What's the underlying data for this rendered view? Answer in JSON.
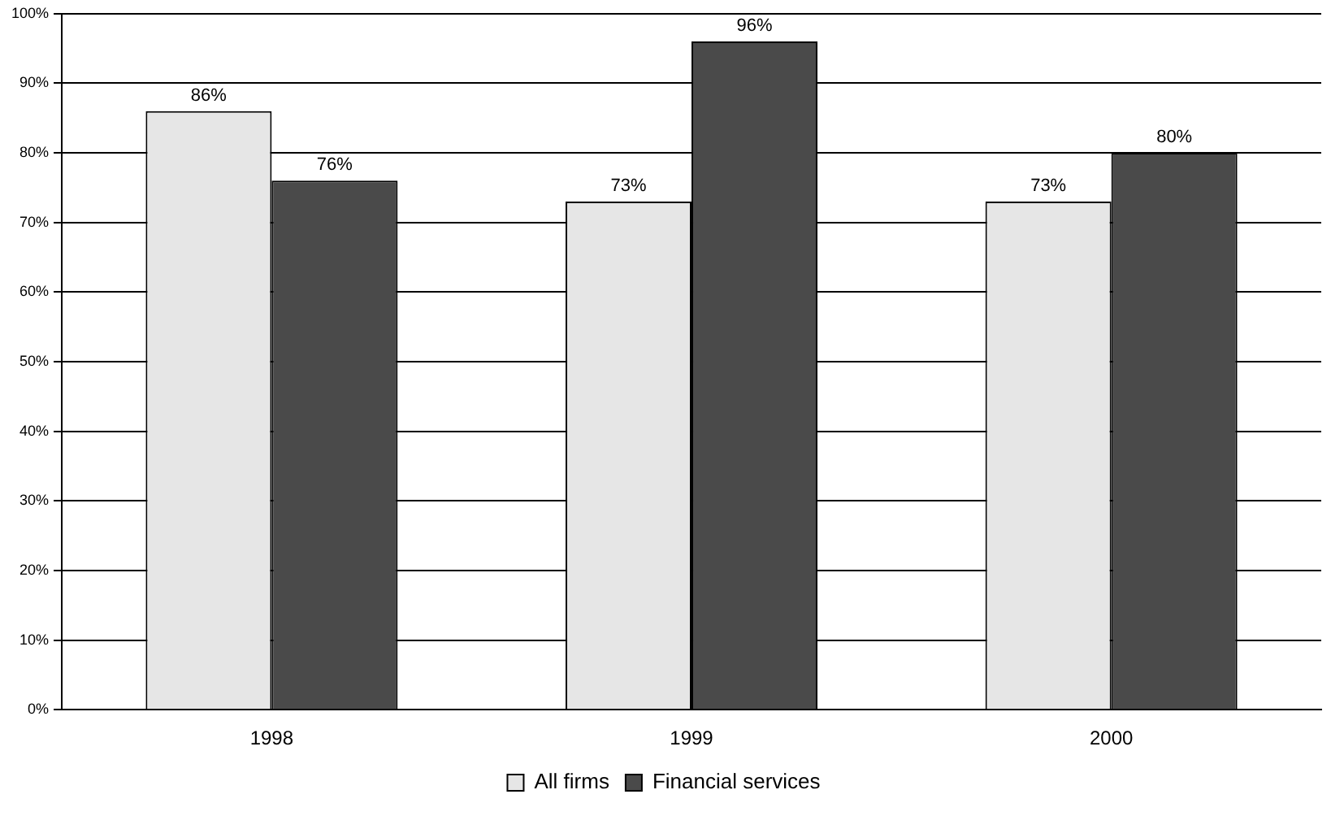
{
  "chart_data": {
    "type": "bar",
    "categories": [
      "1998",
      "1999",
      "2000"
    ],
    "series": [
      {
        "name": "All firms",
        "color": "#e6e6e6",
        "values": [
          86,
          73,
          73
        ],
        "value_labels": [
          "86%",
          "73%",
          "73%"
        ]
      },
      {
        "name": "Financial services",
        "color": "#4a4a4a",
        "values": [
          76,
          96,
          80
        ],
        "value_labels": [
          "76%",
          "96%",
          "80%"
        ]
      }
    ],
    "ylim": [
      0,
      100
    ],
    "yticks": [
      {
        "value": 0,
        "label": "0%"
      },
      {
        "value": 10,
        "label": "10%"
      },
      {
        "value": 20,
        "label": "20%"
      },
      {
        "value": 30,
        "label": "30%"
      },
      {
        "value": 40,
        "label": "40%"
      },
      {
        "value": 50,
        "label": "50%"
      },
      {
        "value": 60,
        "label": "60%"
      },
      {
        "value": 70,
        "label": "70%"
      },
      {
        "value": 80,
        "label": "80%"
      },
      {
        "value": 90,
        "label": "90%"
      },
      {
        "value": 100,
        "label": "100%"
      }
    ],
    "grid": "y",
    "legend": "bottom"
  }
}
